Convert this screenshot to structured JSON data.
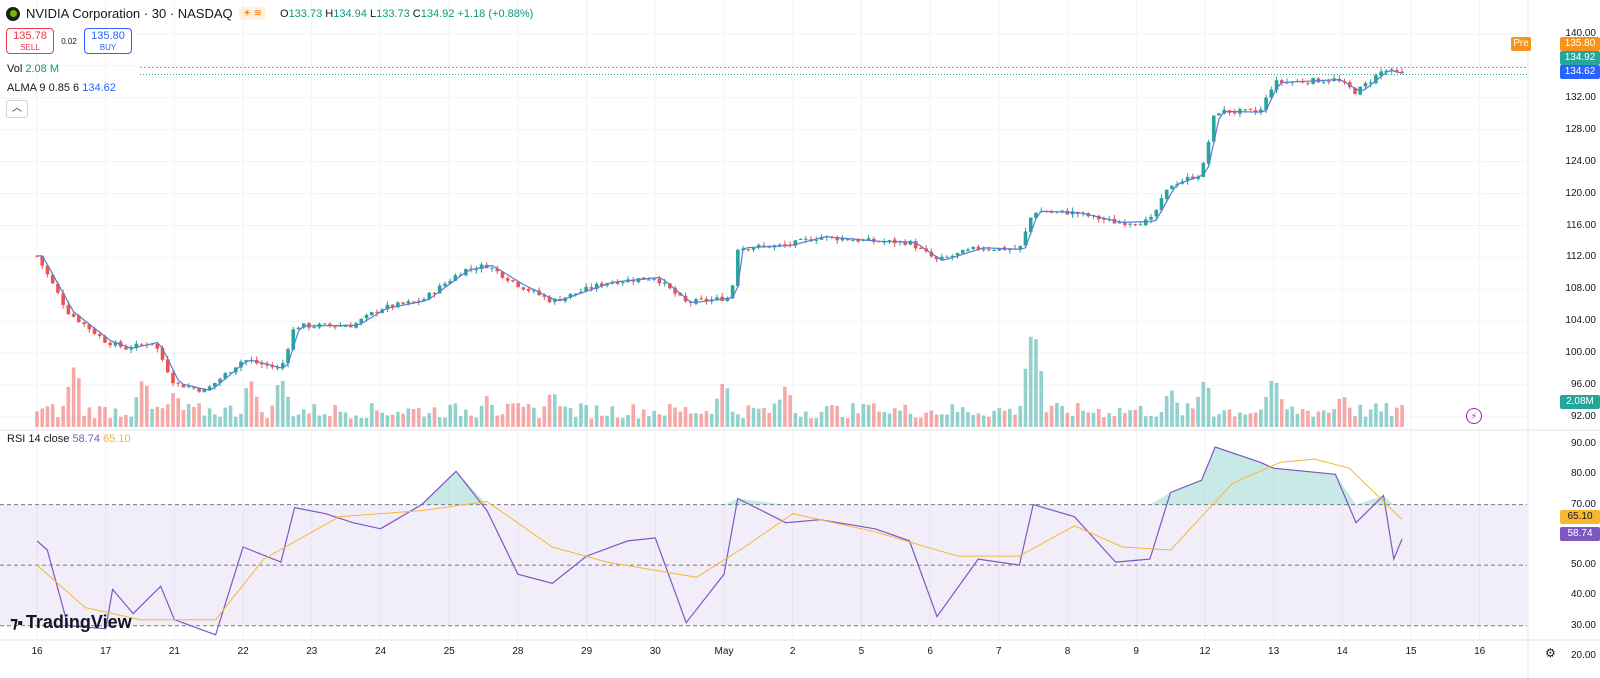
{
  "header": {
    "symbol": "NVIDIA Corporation · 30 · NASDAQ",
    "badge_icons": [
      "sun-icon",
      "wave-icon"
    ],
    "ohlc": {
      "o_label": "O",
      "o": "133.73",
      "h_label": "H",
      "h": "134.94",
      "l_label": "L",
      "l": "133.73",
      "c_label": "C",
      "c": "134.92",
      "change": "+1.18 (+0.88%)"
    }
  },
  "trade": {
    "sell_price": "135.78",
    "sell_label": "SELL",
    "spread": "0.02",
    "buy_price": "135.80",
    "buy_label": "BUY"
  },
  "volume_legend": {
    "label": "Vol",
    "value": "2.08 M"
  },
  "alma_legend": {
    "label": "ALMA 9 0.85 6",
    "value": "134.62"
  },
  "rsi_legend": {
    "label": "RSI 14 close",
    "rsi": "58.74",
    "ma": "65.10"
  },
  "branding": {
    "name": "TradingView"
  },
  "price_labels": {
    "pre_tag": "Pre",
    "pre": "135.80",
    "last": "134.92",
    "alma": "134.62",
    "volume": "2.08M",
    "rsi": "58.74",
    "rsi_ma": "65.10"
  },
  "colors": {
    "up": "#26a69a",
    "down": "#ef5350",
    "alma": "#5b7bd5",
    "rsi": "#7e57c2",
    "rsi_ma": "#f7b731",
    "pre": "#f7931a"
  },
  "chart_data": {
    "type": "candlestick",
    "price_axis": {
      "ticks": [
        "92.00",
        "96.00",
        "100.00",
        "104.00",
        "108.00",
        "112.00",
        "116.00",
        "120.00",
        "124.00",
        "128.00",
        "132.00",
        "136.00",
        "140.00"
      ]
    },
    "rsi_axis": {
      "ticks": [
        "20.00",
        "30.00",
        "40.00",
        "50.00",
        "60.00",
        "70.00",
        "80.00",
        "90.00"
      ],
      "bands": [
        30,
        50,
        70
      ]
    },
    "x_labels": [
      "16",
      "17",
      "21",
      "22",
      "23",
      "24",
      "25",
      "28",
      "29",
      "30",
      "May",
      "2",
      "5",
      "6",
      "7",
      "8",
      "9",
      "12",
      "13",
      "14",
      "15",
      "16"
    ],
    "price_anchors": [
      {
        "d": 0,
        "p": 112.2
      },
      {
        "d": 0.45,
        "p": 105.2
      },
      {
        "d": 1.0,
        "p": 101.5
      },
      {
        "d": 1.3,
        "p": 100.6
      },
      {
        "d": 1.7,
        "p": 101.4
      },
      {
        "d": 2.0,
        "p": 96.2
      },
      {
        "d": 2.45,
        "p": 95.3
      },
      {
        "d": 3.0,
        "p": 99.2
      },
      {
        "d": 3.55,
        "p": 98.0
      },
      {
        "d": 3.75,
        "p": 103.4
      },
      {
        "d": 4.6,
        "p": 103.5
      },
      {
        "d": 5.0,
        "p": 105.6
      },
      {
        "d": 5.6,
        "p": 106.6
      },
      {
        "d": 6.2,
        "p": 110.4
      },
      {
        "d": 6.55,
        "p": 111.0
      },
      {
        "d": 7.0,
        "p": 108.6
      },
      {
        "d": 7.5,
        "p": 106.5
      },
      {
        "d": 8.3,
        "p": 108.9
      },
      {
        "d": 9.0,
        "p": 109.5
      },
      {
        "d": 9.45,
        "p": 106.3
      },
      {
        "d": 10.1,
        "p": 107.0
      },
      {
        "d": 10.2,
        "p": 113.2
      },
      {
        "d": 10.9,
        "p": 113.5
      },
      {
        "d": 11.4,
        "p": 114.6
      },
      {
        "d": 12.2,
        "p": 114.0
      },
      {
        "d": 12.7,
        "p": 113.9
      },
      {
        "d": 13.1,
        "p": 111.6
      },
      {
        "d": 13.7,
        "p": 113.2
      },
      {
        "d": 14.3,
        "p": 113.0
      },
      {
        "d": 14.5,
        "p": 117.8
      },
      {
        "d": 15.1,
        "p": 117.6
      },
      {
        "d": 15.7,
        "p": 116.4
      },
      {
        "d": 16.2,
        "p": 116.5
      },
      {
        "d": 16.5,
        "p": 121.1
      },
      {
        "d": 16.95,
        "p": 122.5
      },
      {
        "d": 17.15,
        "p": 130.3
      },
      {
        "d": 17.8,
        "p": 130.2
      },
      {
        "d": 18.0,
        "p": 133.9
      },
      {
        "d": 18.9,
        "p": 134.3
      },
      {
        "d": 19.2,
        "p": 132.7
      },
      {
        "d": 19.6,
        "p": 135.5
      },
      {
        "d": 19.87,
        "p": 134.9
      }
    ],
    "volume_spikes": [
      {
        "d": 0.55,
        "v": 9.0
      },
      {
        "d": 1.55,
        "v": 7.2
      },
      {
        "d": 2.0,
        "v": 5.2
      },
      {
        "d": 3.1,
        "v": 7.0
      },
      {
        "d": 3.55,
        "v": 7.3
      },
      {
        "d": 6.55,
        "v": 4.4
      },
      {
        "d": 7.5,
        "v": 5.4
      },
      {
        "d": 10.0,
        "v": 6.8
      },
      {
        "d": 10.9,
        "v": 6.0
      },
      {
        "d": 12.15,
        "v": 3.8
      },
      {
        "d": 14.5,
        "v": 14.8
      },
      {
        "d": 16.5,
        "v": 5.6
      },
      {
        "d": 17.0,
        "v": 7.0
      },
      {
        "d": 18.0,
        "v": 7.5
      },
      {
        "d": 19.0,
        "v": 4.8
      },
      {
        "d": 19.87,
        "v": 3.1
      }
    ],
    "rsi": [
      {
        "d": 0,
        "v": 58
      },
      {
        "d": 0.15,
        "v": 55
      },
      {
        "d": 0.45,
        "v": 30
      },
      {
        "d": 1.0,
        "v": 29
      },
      {
        "d": 1.1,
        "v": 42
      },
      {
        "d": 1.4,
        "v": 34
      },
      {
        "d": 1.8,
        "v": 43
      },
      {
        "d": 2.0,
        "v": 32
      },
      {
        "d": 2.6,
        "v": 27
      },
      {
        "d": 3.0,
        "v": 56
      },
      {
        "d": 3.55,
        "v": 51
      },
      {
        "d": 3.75,
        "v": 69
      },
      {
        "d": 4.2,
        "v": 67
      },
      {
        "d": 4.6,
        "v": 64
      },
      {
        "d": 5.0,
        "v": 62
      },
      {
        "d": 5.6,
        "v": 70
      },
      {
        "d": 6.1,
        "v": 81
      },
      {
        "d": 6.55,
        "v": 68
      },
      {
        "d": 7.0,
        "v": 47
      },
      {
        "d": 7.5,
        "v": 44
      },
      {
        "d": 8.0,
        "v": 53
      },
      {
        "d": 8.6,
        "v": 58
      },
      {
        "d": 9.0,
        "v": 59
      },
      {
        "d": 9.45,
        "v": 31
      },
      {
        "d": 10.0,
        "v": 47
      },
      {
        "d": 10.2,
        "v": 72
      },
      {
        "d": 10.9,
        "v": 64
      },
      {
        "d": 11.4,
        "v": 65
      },
      {
        "d": 12.2,
        "v": 62
      },
      {
        "d": 12.7,
        "v": 58
      },
      {
        "d": 13.1,
        "v": 33
      },
      {
        "d": 13.7,
        "v": 52
      },
      {
        "d": 14.3,
        "v": 50
      },
      {
        "d": 14.5,
        "v": 70
      },
      {
        "d": 15.1,
        "v": 66
      },
      {
        "d": 15.7,
        "v": 51
      },
      {
        "d": 16.2,
        "v": 52
      },
      {
        "d": 16.5,
        "v": 74
      },
      {
        "d": 16.95,
        "v": 78
      },
      {
        "d": 17.15,
        "v": 89
      },
      {
        "d": 17.8,
        "v": 84
      },
      {
        "d": 18.0,
        "v": 82
      },
      {
        "d": 18.9,
        "v": 80
      },
      {
        "d": 19.2,
        "v": 64
      },
      {
        "d": 19.6,
        "v": 73
      },
      {
        "d": 19.75,
        "v": 52
      },
      {
        "d": 19.87,
        "v": 58.7
      }
    ],
    "rsi_ma": [
      {
        "d": 0,
        "v": 50
      },
      {
        "d": 0.7,
        "v": 36
      },
      {
        "d": 1.5,
        "v": 32
      },
      {
        "d": 2.6,
        "v": 32
      },
      {
        "d": 3.3,
        "v": 52
      },
      {
        "d": 4.4,
        "v": 66
      },
      {
        "d": 5.6,
        "v": 68
      },
      {
        "d": 6.55,
        "v": 71
      },
      {
        "d": 7.5,
        "v": 56
      },
      {
        "d": 8.3,
        "v": 51
      },
      {
        "d": 9.6,
        "v": 46
      },
      {
        "d": 10.3,
        "v": 56
      },
      {
        "d": 11.0,
        "v": 67
      },
      {
        "d": 12.2,
        "v": 61
      },
      {
        "d": 13.4,
        "v": 53
      },
      {
        "d": 14.3,
        "v": 53
      },
      {
        "d": 15.1,
        "v": 63
      },
      {
        "d": 15.8,
        "v": 56
      },
      {
        "d": 16.5,
        "v": 55
      },
      {
        "d": 17.4,
        "v": 77
      },
      {
        "d": 18.1,
        "v": 84
      },
      {
        "d": 18.6,
        "v": 85
      },
      {
        "d": 19.1,
        "v": 82
      },
      {
        "d": 19.87,
        "v": 65.1
      }
    ]
  }
}
